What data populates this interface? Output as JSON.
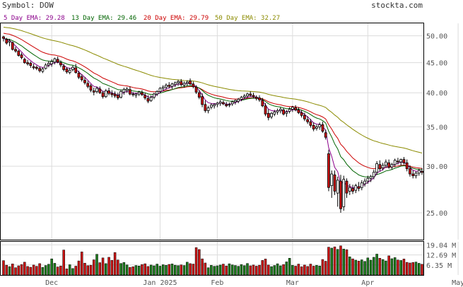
{
  "header": {
    "symbol_label": "Symbol: DOW",
    "site": "stockta.com"
  },
  "legend": [
    {
      "label": "5 Day EMA:",
      "value": "29.28",
      "color": "#8b008b"
    },
    {
      "label": "13 Day EMA:",
      "value": "29.46",
      "color": "#006400"
    },
    {
      "label": "20 Day EMA:",
      "value": "29.79",
      "color": "#cc0000"
    },
    {
      "label": "50 Day EMA:",
      "value": "32.27",
      "color": "#8b8b00"
    }
  ],
  "colors": {
    "up_volume": "#1a7a1a",
    "down_volume": "#cc1111",
    "up_candle": "#ffffff",
    "down_candle": "#cc1111",
    "grid": "#dcdcdc",
    "frame": "#000000"
  },
  "chart_data": {
    "type": "candlestick",
    "price_axis": {
      "ticks": [
        "50.00",
        "45.00",
        "40.00",
        "35.00",
        "30.00",
        "25.00"
      ],
      "ylim": [
        22.5,
        52.5
      ],
      "scale": "log"
    },
    "volume_axis": {
      "ticks": [
        "19.04 M",
        "12.69 M",
        "6.35 M"
      ],
      "ylim": [
        0,
        21
      ]
    },
    "x_labels": [
      "Dec",
      "Jan 2025",
      "Feb",
      "Mar",
      "Apr",
      "May"
    ],
    "x_label_index": [
      16,
      52,
      71,
      96,
      121,
      151
    ],
    "ohlc": [
      [
        49.8,
        50.0,
        48.9,
        49.5
      ],
      [
        49.3,
        49.6,
        48.3,
        48.6
      ],
      [
        48.8,
        49.4,
        48.0,
        49.0
      ],
      [
        48.7,
        48.9,
        47.2,
        47.4
      ],
      [
        47.4,
        47.9,
        46.8,
        47.1
      ],
      [
        47.1,
        47.3,
        46.1,
        46.3
      ],
      [
        46.4,
        46.8,
        45.6,
        45.9
      ],
      [
        45.6,
        45.9,
        44.8,
        45.0
      ],
      [
        45.0,
        45.5,
        44.5,
        44.8
      ],
      [
        44.9,
        45.2,
        44.1,
        44.5
      ],
      [
        44.3,
        44.8,
        43.8,
        44.1
      ],
      [
        44.2,
        44.5,
        43.7,
        44.0
      ],
      [
        44.0,
        44.3,
        43.3,
        43.6
      ],
      [
        43.5,
        44.2,
        43.2,
        43.9
      ],
      [
        44.0,
        44.9,
        43.8,
        44.6
      ],
      [
        44.6,
        45.3,
        44.2,
        44.9
      ],
      [
        44.8,
        45.6,
        44.3,
        45.2
      ],
      [
        45.1,
        45.9,
        44.7,
        45.7
      ],
      [
        45.6,
        46.1,
        44.9,
        45.1
      ],
      [
        45.0,
        45.4,
        44.2,
        44.6
      ],
      [
        44.4,
        44.8,
        43.5,
        43.8
      ],
      [
        43.9,
        44.2,
        43.1,
        43.4
      ],
      [
        43.3,
        44.1,
        43.0,
        43.7
      ],
      [
        43.8,
        44.5,
        43.5,
        44.2
      ],
      [
        44.1,
        44.8,
        43.1,
        43.3
      ],
      [
        43.2,
        43.6,
        42.2,
        42.5
      ],
      [
        42.6,
        43.0,
        41.8,
        42.1
      ],
      [
        42.0,
        42.5,
        41.3,
        41.6
      ],
      [
        41.5,
        41.9,
        40.7,
        41.0
      ],
      [
        41.1,
        41.4,
        40.1,
        40.4
      ],
      [
        40.3,
        40.8,
        39.6,
        40.1
      ],
      [
        40.2,
        41.0,
        39.9,
        40.7
      ],
      [
        40.6,
        41.0,
        39.8,
        40.0
      ],
      [
        40.0,
        40.3,
        39.1,
        39.4
      ],
      [
        39.4,
        40.6,
        39.2,
        40.3
      ],
      [
        40.3,
        40.8,
        39.6,
        39.9
      ],
      [
        39.9,
        40.4,
        39.3,
        39.7
      ],
      [
        39.8,
        40.2,
        39.2,
        39.5
      ],
      [
        39.6,
        40.0,
        38.9,
        39.2
      ],
      [
        39.3,
        40.5,
        39.1,
        40.2
      ],
      [
        40.1,
        40.8,
        39.7,
        40.5
      ],
      [
        40.4,
        40.9,
        40.0,
        40.6
      ],
      [
        40.5,
        41.0,
        39.6,
        39.8
      ],
      [
        39.8,
        40.1,
        39.4,
        39.7
      ],
      [
        39.6,
        40.0,
        39.2,
        39.8
      ],
      [
        39.8,
        40.3,
        39.5,
        40.1
      ],
      [
        40.0,
        40.4,
        39.5,
        39.7
      ],
      [
        39.6,
        40.0,
        38.9,
        39.2
      ],
      [
        39.1,
        39.6,
        38.4,
        38.7
      ],
      [
        38.8,
        39.6,
        38.6,
        39.3
      ],
      [
        39.3,
        40.0,
        39.0,
        39.8
      ],
      [
        39.8,
        40.4,
        39.5,
        40.2
      ],
      [
        40.2,
        40.9,
        40.0,
        40.7
      ],
      [
        40.7,
        41.2,
        40.3,
        40.9
      ],
      [
        40.9,
        41.5,
        40.5,
        41.2
      ],
      [
        41.2,
        41.7,
        40.7,
        41.0
      ],
      [
        41.0,
        41.6,
        40.6,
        41.4
      ],
      [
        41.3,
        41.8,
        40.9,
        41.6
      ],
      [
        41.6,
        42.1,
        41.1,
        41.8
      ],
      [
        41.8,
        42.2,
        41.0,
        41.3
      ],
      [
        41.2,
        41.8,
        40.8,
        41.5
      ],
      [
        41.5,
        42.0,
        41.1,
        41.7
      ],
      [
        41.9,
        42.3,
        41.2,
        41.4
      ],
      [
        41.4,
        41.8,
        40.7,
        41.0
      ],
      [
        40.9,
        41.2,
        39.8,
        40.1
      ],
      [
        40.0,
        40.4,
        39.0,
        39.3
      ],
      [
        39.4,
        39.9,
        37.8,
        38.2
      ],
      [
        38.2,
        38.8,
        37.0,
        37.3
      ],
      [
        37.3,
        38.0,
        36.9,
        37.7
      ],
      [
        37.8,
        38.4,
        37.5,
        38.1
      ],
      [
        38.0,
        38.4,
        37.6,
        38.2
      ],
      [
        38.2,
        38.6,
        37.8,
        38.4
      ],
      [
        38.4,
        38.9,
        38.0,
        38.6
      ],
      [
        38.5,
        38.8,
        38.1,
        38.3
      ],
      [
        38.2,
        38.6,
        37.8,
        38.0
      ],
      [
        38.1,
        38.5,
        37.8,
        38.2
      ],
      [
        38.3,
        38.8,
        38.0,
        38.6
      ],
      [
        38.6,
        39.0,
        38.2,
        38.8
      ],
      [
        38.7,
        39.2,
        38.4,
        39.0
      ],
      [
        39.0,
        39.5,
        38.7,
        39.3
      ],
      [
        39.3,
        39.8,
        39.0,
        39.5
      ],
      [
        39.5,
        40.0,
        39.2,
        39.8
      ],
      [
        39.8,
        40.2,
        39.4,
        39.6
      ],
      [
        39.6,
        40.0,
        39.1,
        39.4
      ],
      [
        39.3,
        39.6,
        38.8,
        39.1
      ],
      [
        39.2,
        39.6,
        38.6,
        38.9
      ],
      [
        38.8,
        39.2,
        37.8,
        38.0
      ],
      [
        38.0,
        38.4,
        36.5,
        36.8
      ],
      [
        36.9,
        37.5,
        35.9,
        36.3
      ],
      [
        36.4,
        37.1,
        36.1,
        36.9
      ],
      [
        36.8,
        37.4,
        36.5,
        37.1
      ],
      [
        37.1,
        37.6,
        36.7,
        37.3
      ],
      [
        37.3,
        37.8,
        36.9,
        37.5
      ],
      [
        37.4,
        37.7,
        36.6,
        36.8
      ],
      [
        36.9,
        37.4,
        36.4,
        37.1
      ],
      [
        37.2,
        37.8,
        36.9,
        37.5
      ],
      [
        37.5,
        38.0,
        37.1,
        37.8
      ],
      [
        37.7,
        38.1,
        37.2,
        37.4
      ],
      [
        37.4,
        37.8,
        36.8,
        37.0
      ],
      [
        37.0,
        37.4,
        36.3,
        36.6
      ],
      [
        36.6,
        37.0,
        35.8,
        36.1
      ],
      [
        36.0,
        36.5,
        35.4,
        35.7
      ],
      [
        35.7,
        36.1,
        34.9,
        35.2
      ],
      [
        35.2,
        35.6,
        34.4,
        34.7
      ],
      [
        34.8,
        35.3,
        34.5,
        35.0
      ],
      [
        35.0,
        35.6,
        34.6,
        35.3
      ],
      [
        35.3,
        35.7,
        34.2,
        34.4
      ],
      [
        34.2,
        34.6,
        33.3,
        33.6
      ],
      [
        31.5,
        32.0,
        27.2,
        27.6
      ],
      [
        27.8,
        29.5,
        26.5,
        29.1
      ],
      [
        29.0,
        29.5,
        26.8,
        27.2
      ],
      [
        27.0,
        28.8,
        25.6,
        28.4
      ],
      [
        28.3,
        29.0,
        25.0,
        25.4
      ],
      [
        25.6,
        28.9,
        25.2,
        28.5
      ],
      [
        28.3,
        28.6,
        26.5,
        27.0
      ],
      [
        27.2,
        28.0,
        26.8,
        27.6
      ],
      [
        27.5,
        27.9,
        26.9,
        27.2
      ],
      [
        27.3,
        28.0,
        27.0,
        27.8
      ],
      [
        27.7,
        28.2,
        27.2,
        27.5
      ],
      [
        27.6,
        28.4,
        27.3,
        28.1
      ],
      [
        28.0,
        28.6,
        27.7,
        28.3
      ],
      [
        28.3,
        28.9,
        28.0,
        28.6
      ],
      [
        28.6,
        29.0,
        28.2,
        28.8
      ],
      [
        28.8,
        29.6,
        28.5,
        29.3
      ],
      [
        29.3,
        30.6,
        29.0,
        30.3
      ],
      [
        30.2,
        30.7,
        29.4,
        29.7
      ],
      [
        29.8,
        30.4,
        29.5,
        30.1
      ],
      [
        30.1,
        30.8,
        29.8,
        30.5
      ],
      [
        30.4,
        30.8,
        29.7,
        29.9
      ],
      [
        29.9,
        30.4,
        29.6,
        30.2
      ],
      [
        30.2,
        30.9,
        29.9,
        30.7
      ],
      [
        30.6,
        31.0,
        30.2,
        30.5
      ],
      [
        30.5,
        30.9,
        30.1,
        30.8
      ],
      [
        30.8,
        31.1,
        30.2,
        30.4
      ],
      [
        30.4,
        30.8,
        29.4,
        29.7
      ],
      [
        29.7,
        30.1,
        28.8,
        29.1
      ],
      [
        29.1,
        29.5,
        28.6,
        28.9
      ],
      [
        28.9,
        29.4,
        28.6,
        29.2
      ],
      [
        29.2,
        29.7,
        28.9,
        29.5
      ],
      [
        29.4,
        29.8,
        29.0,
        29.28
      ]
    ],
    "volume": [
      9.1,
      6.2,
      5.3,
      7.0,
      4.6,
      5.8,
      6.6,
      8.1,
      5.4,
      4.9,
      6.3,
      5.5,
      7.2,
      4.8,
      6.0,
      6.8,
      10.2,
      7.4,
      5.1,
      5.7,
      15.8,
      3.9,
      6.5,
      4.1,
      5.6,
      8.9,
      14.6,
      7.5,
      5.9,
      6.2,
      9.6,
      13.1,
      7.8,
      10.8,
      7.2,
      11.2,
      9.3,
      14.2,
      9.5,
      7.3,
      7.9,
      6.4,
      4.8,
      5.2,
      6.0,
      5.7,
      6.6,
      7.1,
      5.4,
      6.3,
      5.8,
      6.9,
      5.6,
      6.5,
      6.1,
      6.7,
      7.0,
      6.2,
      5.9,
      6.4,
      6.0,
      8.1,
      7.2,
      6.9,
      17.3,
      16.1,
      10.2,
      7.6,
      4.6,
      6.1,
      5.5,
      5.8,
      6.3,
      6.9,
      5.7,
      7.1,
      6.4,
      6.0,
      5.5,
      6.6,
      5.9,
      7.3,
      5.8,
      6.3,
      5.6,
      6.2,
      9.2,
      10.1,
      6.3,
      5.3,
      6.0,
      7.1,
      5.8,
      6.6,
      8.3,
      10.6,
      6.1,
      5.6,
      6.9,
      5.2,
      6.3,
      5.4,
      6.9,
      5.6,
      6.1,
      5.7,
      9.8,
      8.7,
      17.6,
      17.0,
      17.8,
      16.2,
      18.4,
      16.4,
      16.0,
      11.5,
      10.2,
      9.4,
      8.8,
      9.6,
      8.6,
      10.8,
      9.4,
      11.2,
      13.2,
      10.6,
      9.8,
      8.9,
      12.1,
      10.3,
      11.0,
      9.5,
      9.2,
      10.1,
      8.0,
      7.6,
      7.9,
      8.2,
      7.4,
      6.8
    ]
  }
}
